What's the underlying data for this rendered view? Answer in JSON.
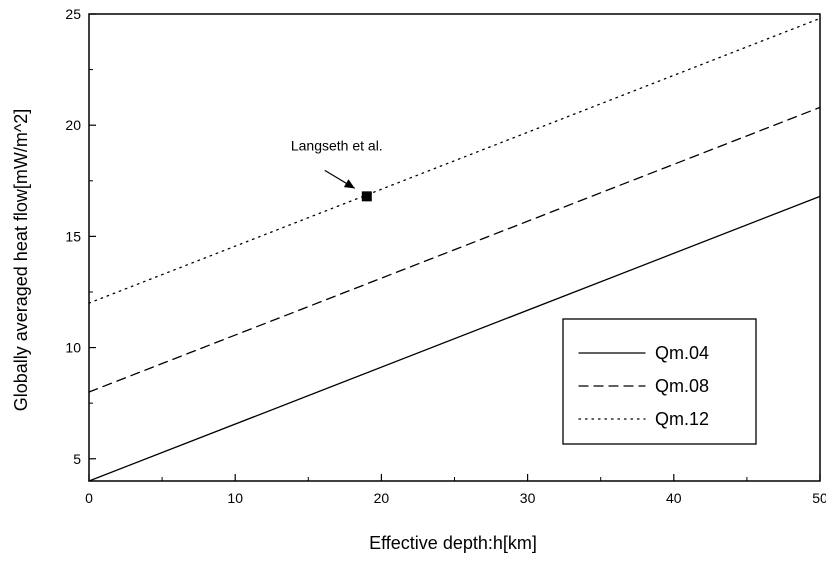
{
  "chart_data": {
    "type": "line",
    "xlabel": "Effective depth:h[km]",
    "ylabel": "Globally averaged heat flow[mW/m^2]",
    "xlim": [
      0,
      50
    ],
    "ylim": [
      4,
      25
    ],
    "x_ticks": [
      0,
      10,
      20,
      30,
      40,
      50
    ],
    "y_ticks": [
      5,
      10,
      15,
      20,
      25
    ],
    "x_tick_labels": [
      "0",
      "10",
      "20",
      "30",
      "40",
      "50"
    ],
    "y_tick_labels": [
      "5",
      "10",
      "15",
      "20",
      "25"
    ],
    "grid": false,
    "legend_position": "bottom-right",
    "series": [
      {
        "name": "Qm.04",
        "style": "solid",
        "x": [
          0,
          50
        ],
        "y": [
          4.0,
          16.8
        ]
      },
      {
        "name": "Qm.08",
        "style": "dashed",
        "x": [
          0,
          50
        ],
        "y": [
          8.0,
          20.8
        ]
      },
      {
        "name": "Qm.12",
        "style": "dotted",
        "x": [
          0,
          50
        ],
        "y": [
          12.0,
          24.8
        ]
      }
    ],
    "annotations": [
      {
        "label": "Langseth et al.",
        "x": 19,
        "y": 16.8,
        "marker": "square"
      }
    ]
  }
}
